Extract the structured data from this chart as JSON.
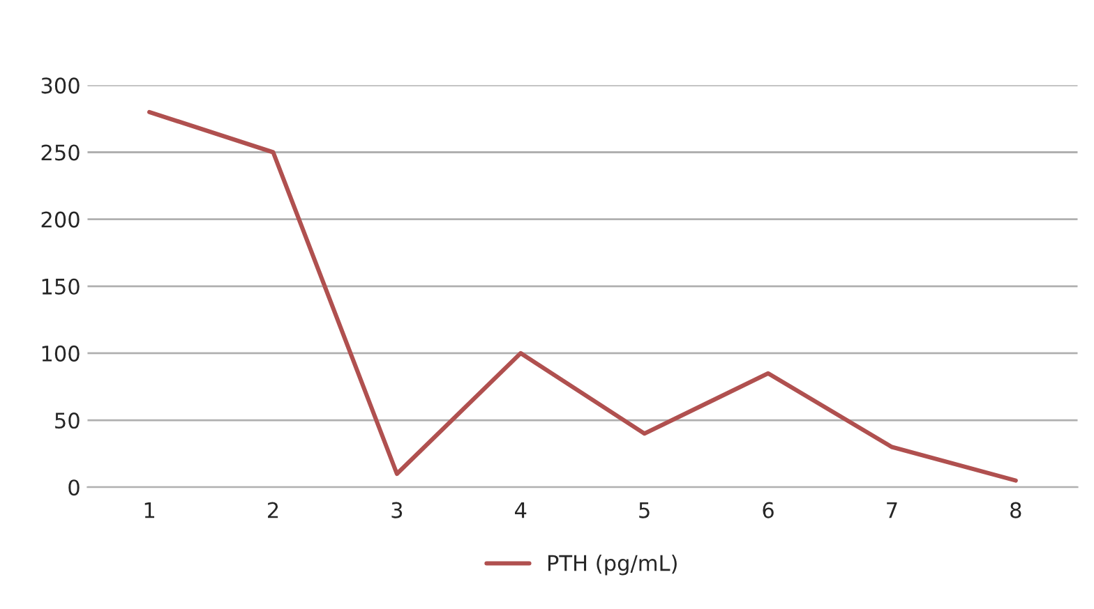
{
  "chart_data": {
    "type": "line",
    "categories": [
      "1",
      "2",
      "3",
      "4",
      "5",
      "6",
      "7",
      "8"
    ],
    "series": [
      {
        "name": "PTH (pg/mL)",
        "color": "#b0504f",
        "values": [
          280,
          250,
          10,
          100,
          40,
          85,
          30,
          5
        ]
      }
    ],
    "ylim": [
      0,
      300
    ],
    "yticks": [
      0,
      50,
      100,
      150,
      200,
      250,
      300
    ],
    "grid": "y",
    "legend": "bottom",
    "marker": "none",
    "line_style": "solid"
  }
}
